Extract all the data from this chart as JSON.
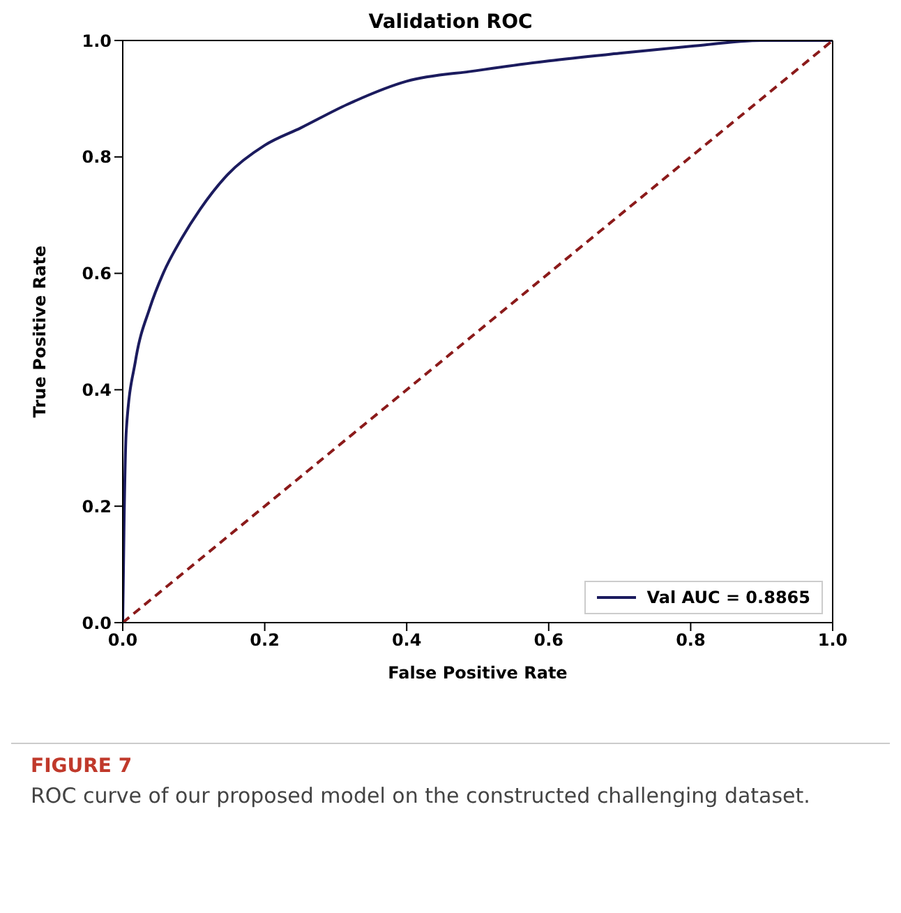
{
  "chart_data": {
    "type": "line",
    "title": "Validation ROC",
    "xlabel": "False Positive Rate",
    "ylabel": "True Positive Rate",
    "xlim": [
      0,
      1
    ],
    "ylim": [
      0,
      1
    ],
    "xticks": [
      {
        "value": 0,
        "label": "0.0"
      },
      0.2,
      0.4,
      0.6,
      0.8,
      {
        "value": 1,
        "label": "1.0"
      }
    ],
    "yticks": [
      {
        "value": 0,
        "label": "0.0"
      },
      0.2,
      0.4,
      0.6,
      0.8,
      {
        "value": 1,
        "label": "1.0"
      }
    ],
    "grid": false,
    "legend": "bottom right",
    "marker": "none",
    "series": [
      {
        "name": "Val AUC = 0.8865",
        "color": "#1b1b5e",
        "line_style": "solid",
        "x": [
          0,
          0.002,
          0.005,
          0.018,
          0.038,
          0.057,
          0.083,
          0.109,
          0.148,
          0.2,
          0.251,
          0.316,
          0.4,
          0.497,
          0.6,
          0.7,
          0.8,
          0.9,
          1
        ],
        "values": [
          0,
          0.18,
          0.33,
          0.45,
          0.54,
          0.6,
          0.66,
          0.71,
          0.77,
          0.82,
          0.85,
          0.89,
          0.93,
          0.948,
          0.965,
          0.978,
          0.99,
          1,
          1
        ]
      },
      {
        "color": "#8b1a1a",
        "line_style": "dashed",
        "x": [
          0,
          1
        ],
        "values": [
          0,
          1
        ]
      }
    ],
    "annotations": [
      "FIGURE 7",
      "ROC curve of our proposed model on the constructed challenging dataset."
    ]
  }
}
